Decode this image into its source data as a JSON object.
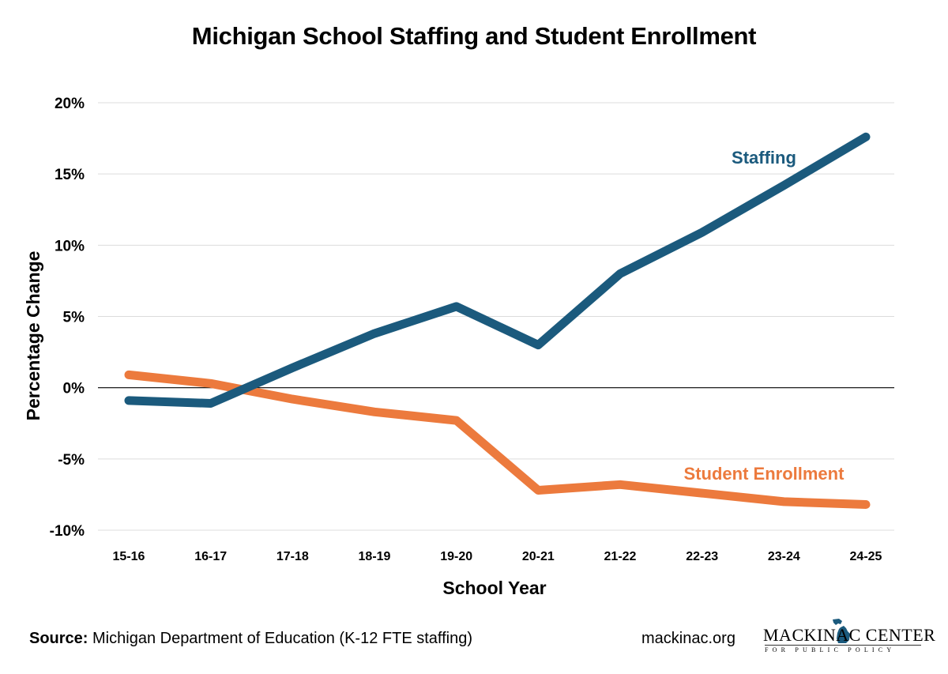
{
  "chart_data": {
    "type": "line",
    "title": "Michigan School Staffing and Student Enrollment",
    "xlabel": "School Year",
    "ylabel": "Percentage Change",
    "categories": [
      "15-16",
      "16-17",
      "17-18",
      "18-19",
      "19-20",
      "20-21",
      "21-22",
      "22-23",
      "23-24",
      "24-25"
    ],
    "y_ticks": [
      20,
      15,
      10,
      5,
      0,
      -5,
      -10
    ],
    "y_tick_labels": [
      "20%",
      "15%",
      "10%",
      "5%",
      "0%",
      "-5%",
      "-10%"
    ],
    "ylim": [
      -10,
      20
    ],
    "grid": true,
    "series": [
      {
        "name": "Staffing",
        "color": "#1b5a7d",
        "values": [
          -0.9,
          -1.1,
          1.4,
          3.8,
          5.7,
          3.0,
          8.0,
          10.9,
          14.2,
          17.6
        ]
      },
      {
        "name": "Student Enrollment",
        "color": "#ec7a3d",
        "values": [
          0.9,
          0.3,
          -0.8,
          -1.7,
          -2.3,
          -7.2,
          -6.8,
          -7.4,
          -8.0,
          -8.2
        ]
      }
    ]
  },
  "footer": {
    "source_label": "Source:",
    "source_text": " Michigan Department of Education (K-12 FTE staffing)",
    "website": "mackinac.org",
    "logo_main": "MACKINAC CENTER",
    "logo_sub": "FOR PUBLIC POLICY"
  }
}
